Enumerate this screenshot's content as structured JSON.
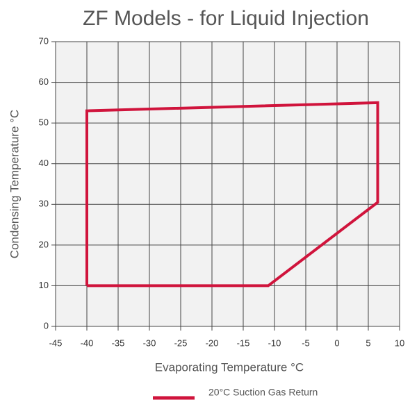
{
  "chart_data": {
    "type": "line",
    "title": "ZF Models - for Liquid Injection",
    "xlabel": "Evaporating Temperature °C",
    "ylabel": "Condensing Temperature °C",
    "x": [
      -40,
      -40,
      6.5,
      6.5,
      -11,
      -40
    ],
    "series": [
      {
        "name": "20°C Suction Gas Return",
        "color": "#d0143c",
        "values": [
          10,
          53,
          55,
          30.5,
          10,
          10
        ]
      }
    ],
    "xlim": [
      -45,
      10
    ],
    "xticks": [
      -45,
      -40,
      -35,
      -30,
      -25,
      -20,
      -15,
      -10,
      -5,
      0,
      5,
      10
    ],
    "ylim": [
      0,
      70
    ],
    "yticks": [
      0,
      10,
      20,
      30,
      40,
      50,
      60,
      70
    ],
    "grid": true,
    "legend": "bottom"
  }
}
